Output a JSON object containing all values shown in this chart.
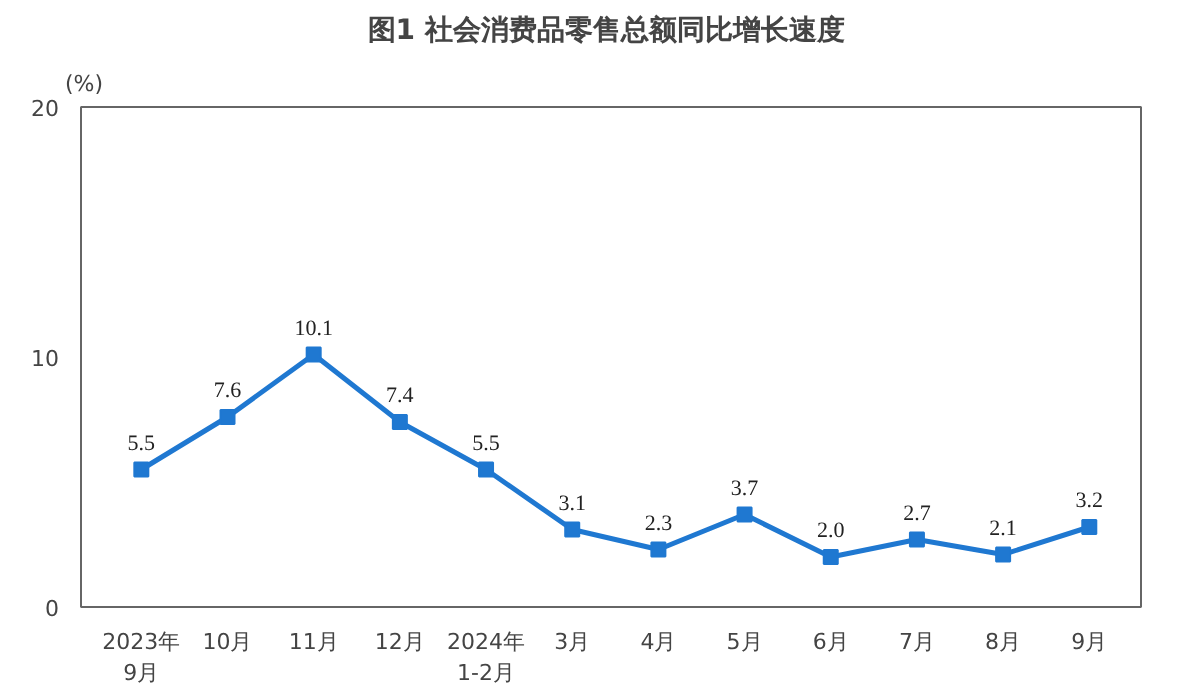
{
  "chart_data": {
    "type": "line",
    "title": "图1  社会消费品零售总额同比增长速度",
    "ylabel": "(%)",
    "categories": [
      "2023年\n9月",
      "10月",
      "11月",
      "12月",
      "2024年\n1-2月",
      "3月",
      "4月",
      "5月",
      "6月",
      "7月",
      "8月",
      "9月"
    ],
    "series": [
      {
        "color": "#1f78d1",
        "values": [
          5.5,
          7.6,
          10.1,
          7.4,
          5.5,
          3.1,
          2.3,
          3.7,
          2.0,
          2.7,
          2.1,
          3.2
        ],
        "value_labels": [
          "5.5",
          "7.6",
          "10.1",
          "7.4",
          "5.5",
          "3.1",
          "2.3",
          "3.7",
          "2.0",
          "2.7",
          "2.1",
          "3.2"
        ]
      }
    ],
    "ylim": [
      0,
      20
    ],
    "yticks": [
      0,
      10,
      20
    ],
    "grid": false,
    "marker": "square",
    "line_style": "solid"
  }
}
